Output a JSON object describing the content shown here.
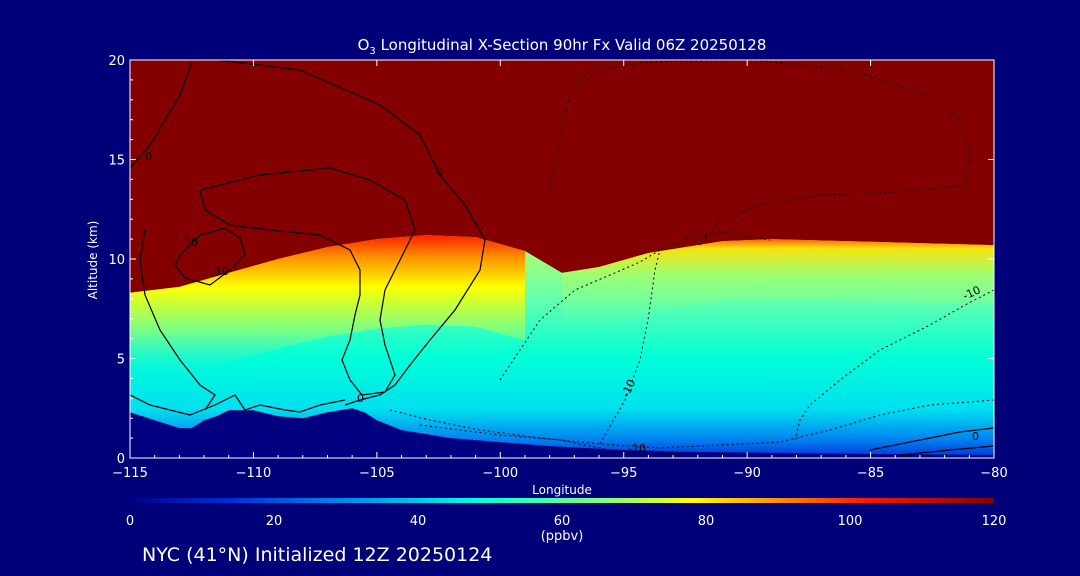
{
  "chart_data": {
    "type": "heatmap",
    "title": {
      "species_main": "O",
      "species_sub": "3",
      "rest": " Longitudinal X-Section 90hr  Fx Valid 06Z 20250128"
    },
    "xlabel": "Longitude",
    "ylabel": "Altitude (km)",
    "xlim": [
      -115,
      -80
    ],
    "ylim": [
      0,
      20
    ],
    "x_ticks": [
      -115,
      -110,
      -105,
      -100,
      -95,
      -90,
      -85,
      -80
    ],
    "x_tick_labels": [
      "−115",
      "−110",
      "−105",
      "−100",
      "−95",
      "−90",
      "−85",
      "−80"
    ],
    "y_ticks": [
      0,
      5,
      10,
      15,
      20
    ],
    "y_tick_labels": [
      "0",
      "5",
      "10",
      "15",
      "20"
    ],
    "colorbar": {
      "min": 0,
      "max": 120,
      "unit": "(ppbv)",
      "ticks": [
        0,
        20,
        40,
        60,
        80,
        100,
        120
      ],
      "tick_labels": [
        "0",
        "20",
        "40",
        "60",
        "80",
        "100",
        "120"
      ],
      "colors": [
        "#00008c",
        "#0030d8",
        "#00a0f0",
        "#00ffe0",
        "#80ff80",
        "#ffff00",
        "#ff9000",
        "#ff1800",
        "#840000"
      ]
    },
    "colorbar_labels_on_contours": [
      "0",
      "0",
      "0",
      "10",
      "10",
      "-10",
      "-10",
      "-10",
      "0"
    ],
    "terrain_km": [
      [
        -115,
        2.3
      ],
      [
        -114,
        1.9
      ],
      [
        -113,
        1.5
      ],
      [
        -112.5,
        1.5
      ],
      [
        -112,
        1.9
      ],
      [
        -111.5,
        2.1
      ],
      [
        -111,
        2.4
      ],
      [
        -110,
        2.4
      ],
      [
        -109,
        2.1
      ],
      [
        -108,
        2.0
      ],
      [
        -107,
        2.3
      ],
      [
        -106,
        2.5
      ],
      [
        -105.5,
        2.3
      ],
      [
        -105,
        1.9
      ],
      [
        -104,
        1.4
      ],
      [
        -102,
        1.0
      ],
      [
        -100,
        0.8
      ],
      [
        -98,
        0.6
      ],
      [
        -95,
        0.4
      ],
      [
        -92,
        0.3
      ],
      [
        -88,
        0.25
      ],
      [
        -85,
        0.2
      ],
      [
        -80,
        0.15
      ]
    ],
    "tropopause_km": [
      [
        -115,
        8.3
      ],
      [
        -113,
        8.6
      ],
      [
        -111,
        9.3
      ],
      [
        -109,
        10.0
      ],
      [
        -107,
        10.6
      ],
      [
        -105,
        11.0
      ],
      [
        -103,
        11.2
      ],
      [
        -101,
        11.1
      ],
      [
        -99,
        10.4
      ],
      [
        -97.5,
        9.3
      ],
      [
        -96,
        9.6
      ],
      [
        -94,
        10.3
      ],
      [
        -91,
        10.9
      ],
      [
        -89,
        11.0
      ],
      [
        -86,
        10.9
      ],
      [
        -83,
        10.8
      ],
      [
        -80,
        10.7
      ]
    ],
    "footer": "NYC (41°N) Initialized 12Z 20250124"
  }
}
